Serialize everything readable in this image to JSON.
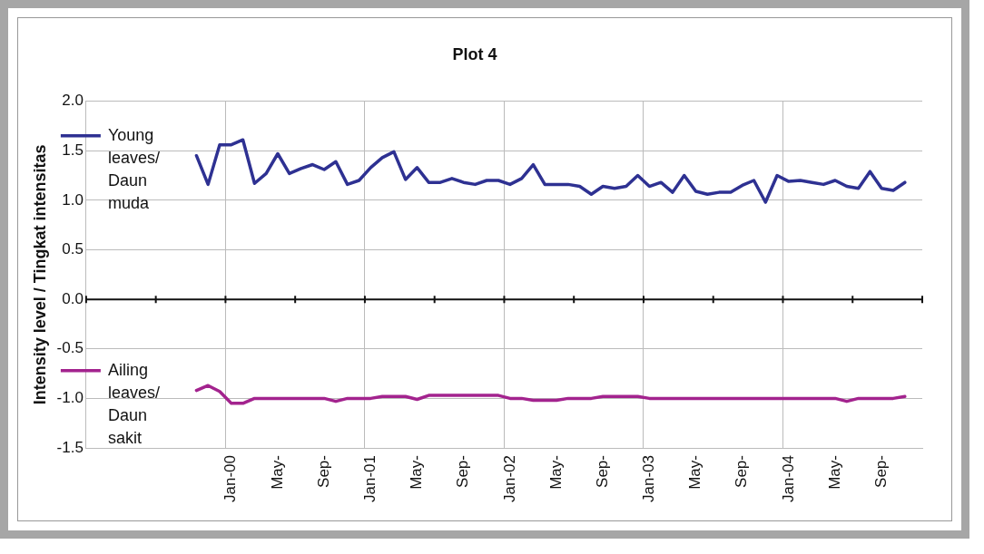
{
  "chart_data": {
    "type": "line",
    "title": "Plot 4",
    "ylabel": "Intensity level / Tingkat intensitas",
    "categories": [
      null,
      null,
      null,
      null,
      null,
      null,
      null,
      null,
      null,
      null,
      null,
      null,
      "Jan-00",
      null,
      null,
      null,
      "May-",
      null,
      null,
      null,
      "Sep-",
      null,
      null,
      null,
      "Jan-01",
      null,
      null,
      null,
      "May-",
      null,
      null,
      null,
      "Sep-",
      null,
      null,
      null,
      "Jan-02",
      null,
      null,
      null,
      "May-",
      null,
      null,
      null,
      "Sep-",
      null,
      null,
      null,
      "Jan-03",
      null,
      null,
      null,
      "May-",
      null,
      null,
      null,
      "Sep-",
      null,
      null,
      null,
      "Jan-04",
      null,
      null,
      null,
      "May-",
      null,
      null,
      null,
      "Sep-",
      null,
      null,
      null
    ],
    "series": [
      {
        "name": "Young leaves/ Daun muda",
        "color": "#2e3192",
        "values": [
          null,
          null,
          null,
          null,
          null,
          null,
          null,
          null,
          null,
          1.45,
          1.16,
          1.56,
          1.56,
          1.61,
          1.17,
          1.27,
          1.47,
          1.27,
          1.32,
          1.36,
          1.31,
          1.39,
          1.16,
          1.2,
          1.33,
          1.43,
          1.49,
          1.21,
          1.33,
          1.18,
          1.18,
          1.22,
          1.18,
          1.16,
          1.2,
          1.2,
          1.16,
          1.22,
          1.36,
          1.16,
          1.16,
          1.16,
          1.14,
          1.06,
          1.14,
          1.12,
          1.14,
          1.25,
          1.14,
          1.18,
          1.08,
          1.25,
          1.09,
          1.06,
          1.08,
          1.08,
          1.15,
          1.2,
          0.98,
          1.25,
          1.19,
          1.2,
          1.18,
          1.16,
          1.2,
          1.14,
          1.12,
          1.29,
          1.12,
          1.1,
          1.18,
          null
        ]
      },
      {
        "name": "Ailing leaves/ Daun sakit",
        "color": "#a3238e",
        "values": [
          null,
          null,
          null,
          null,
          null,
          null,
          null,
          null,
          null,
          -0.92,
          -0.87,
          -0.93,
          -1.05,
          -1.05,
          -1.0,
          -1.0,
          -1.0,
          -1.0,
          -1.0,
          -1.0,
          -1.0,
          -1.03,
          -1.0,
          -1.0,
          -1.0,
          -0.98,
          -0.98,
          -0.98,
          -1.01,
          -0.97,
          -0.97,
          -0.97,
          -0.97,
          -0.97,
          -0.97,
          -0.97,
          -1.0,
          -1.0,
          -1.02,
          -1.02,
          -1.02,
          -1.0,
          -1.0,
          -1.0,
          -0.98,
          -0.98,
          -0.98,
          -0.98,
          -1.0,
          -1.0,
          -1.0,
          -1.0,
          -1.0,
          -1.0,
          -1.0,
          -1.0,
          -1.0,
          -1.0,
          -1.0,
          -1.0,
          -1.0,
          -1.0,
          -1.0,
          -1.0,
          -1.0,
          -1.03,
          -1.0,
          -1.0,
          -1.0,
          -1.0,
          -0.98,
          null
        ]
      }
    ],
    "ylim": [
      -1.5,
      2.0
    ],
    "yticks": [
      {
        "value": -1.5,
        "label": "-1.5"
      },
      {
        "value": -1,
        "label": "-1.0"
      },
      {
        "value": -0.5,
        "label": "-0.5"
      },
      {
        "value": 0,
        "label": "0.0"
      },
      {
        "value": 0.5,
        "label": "0.5"
      },
      {
        "value": 1,
        "label": "1.0"
      },
      {
        "value": 1.5,
        "label": "1.5"
      },
      {
        "value": 2,
        "label": "2.0"
      }
    ],
    "grid": true,
    "legend": "left",
    "marker": "none",
    "line_style": "solid"
  }
}
